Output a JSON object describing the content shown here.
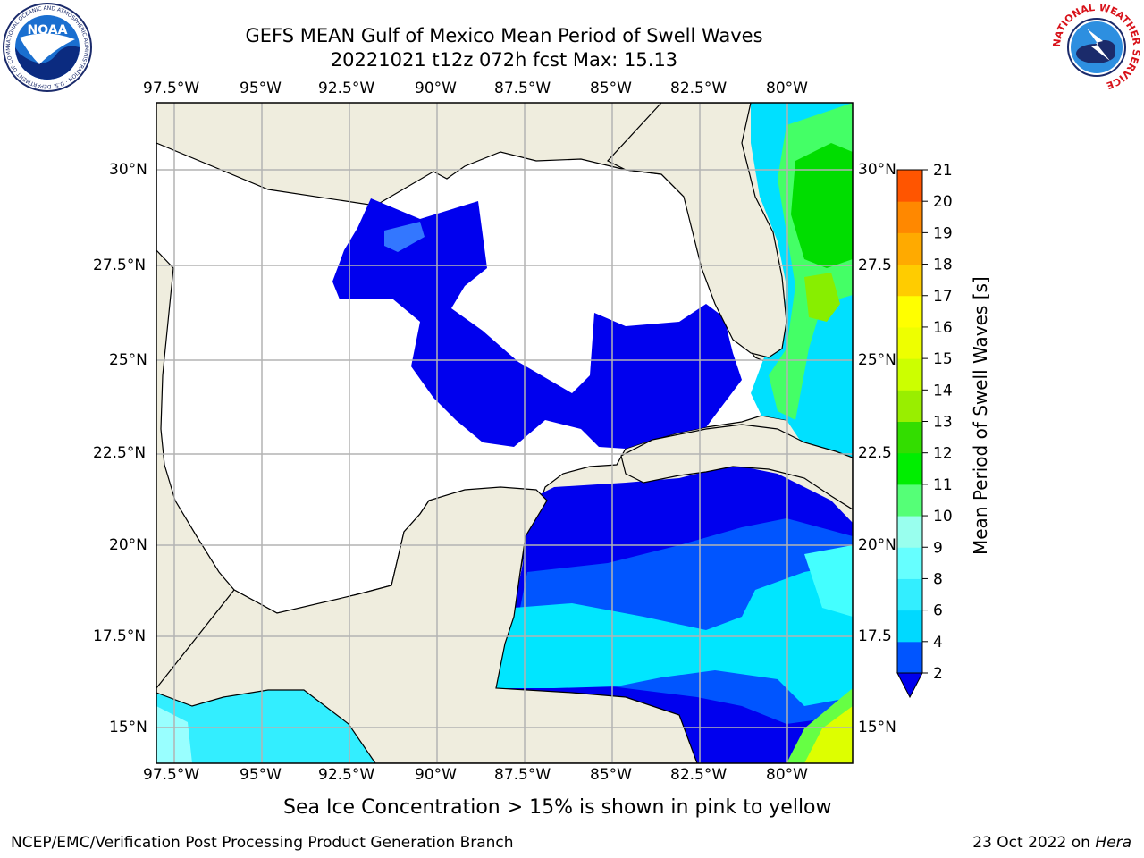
{
  "header": {
    "title_line1": "GEFS MEAN Gulf of Mexico Mean Period of Swell Waves",
    "title_line2": "20221021 t12z 072h fcst   Max: 15.13"
  },
  "logos": {
    "noaa": {
      "text": "NOAA",
      "ring": "NATIONAL OCEANIC AND ATMOSPHERIC ADMINISTRATION · U.S. DEPARTMENT OF COMMERCE"
    },
    "nws": {
      "ring": "NATIONAL WEATHER SERVICE"
    }
  },
  "map": {
    "lon_labels": [
      "97.5°W",
      "95°W",
      "92.5°W",
      "90°W",
      "87.5°W",
      "85°W",
      "82.5°W",
      "80°W"
    ],
    "lat_labels_left": [
      "30°N",
      "27.5°N",
      "25°N",
      "22.5°N",
      "20°N",
      "17.5°N",
      "15°N"
    ],
    "lat_labels_right": [
      "30°N",
      "27.5",
      "25°N",
      "22.5",
      "20°N",
      "17.5",
      "15°N"
    ],
    "land_color": "#efedde",
    "grid_color": "#b3b3b3"
  },
  "colorbar": {
    "label": "Mean Period of Swell Waves [s]",
    "ticks": [
      "2",
      "4",
      "6",
      "8",
      "9",
      "10",
      "11",
      "12",
      "13",
      "14",
      "15",
      "16",
      "17",
      "18",
      "19",
      "20",
      "21"
    ],
    "colors": [
      "#0055ff",
      "#00d9ff",
      "#33eeff",
      "#66ffff",
      "#99ffee",
      "#55ff77",
      "#00ee00",
      "#33dd00",
      "#99ee00",
      "#ccff00",
      "#eeff00",
      "#ffff00",
      "#ffcc00",
      "#ffaa00",
      "#ff8800",
      "#ff5500",
      "#ff2200",
      "#ff0000"
    ],
    "under_color": "#0000ee"
  },
  "footnote": "Sea Ice Concentration > 15% is shown in pink to yellow",
  "footer": {
    "left": "NCEP/EMC/Verification Post Processing Product Generation Branch",
    "right_prefix": "23 Oct 2022 on ",
    "right_host": "Hera"
  }
}
